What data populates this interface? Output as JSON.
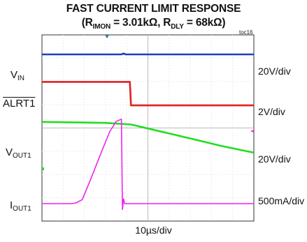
{
  "chart_data": {
    "type": "line",
    "title": "FAST CURRENT LIMIT RESPONSE",
    "subtitle": {
      "open": "(R",
      "rimon_sub": "IMON",
      "rimon_val": " = 3.01kΩ, R",
      "rdly_sub": "DLY",
      "rdly_val": " = 68kΩ)"
    },
    "tag": "toc16",
    "xlabel": "10µs/div",
    "grid": true,
    "divisions": {
      "x": 10,
      "y": 8
    },
    "channel_labels": [
      {
        "main": "V",
        "sub": "IN"
      },
      {
        "main": "ALRT1",
        "sub": ""
      },
      {
        "main": "V",
        "sub": "OUT1"
      },
      {
        "main": "I",
        "sub": "OUT1"
      }
    ],
    "scales": [
      "20V/div",
      "2V/div",
      "20V/div",
      "500mA/div"
    ],
    "series": [
      {
        "color": "#1f3fbf",
        "points": [
          [
            0,
            7.16
          ],
          [
            3.75,
            7.16
          ],
          [
            3.85,
            7.2
          ],
          [
            3.95,
            7.16
          ],
          [
            10,
            7.16
          ]
        ]
      },
      {
        "color": "#e02020",
        "points": [
          [
            0,
            5.98
          ],
          [
            4.15,
            5.98
          ],
          [
            4.2,
            4.97
          ],
          [
            10,
            4.97
          ]
        ]
      },
      {
        "color": "#22dd22",
        "points": [
          [
            0,
            4.26
          ],
          [
            3.0,
            4.22
          ],
          [
            4.2,
            4.15
          ],
          [
            5.5,
            3.87
          ],
          [
            7.0,
            3.55
          ],
          [
            8.5,
            3.22
          ],
          [
            10,
            2.94
          ]
        ]
      },
      {
        "color": "#ee22ee",
        "points": [
          [
            0,
            0.75
          ],
          [
            1.4,
            0.75
          ],
          [
            1.6,
            0.78
          ],
          [
            1.9,
            0.92
          ],
          [
            2.3,
            1.8
          ],
          [
            2.8,
            2.95
          ],
          [
            3.2,
            3.85
          ],
          [
            3.5,
            4.28
          ],
          [
            3.75,
            4.38
          ],
          [
            3.8,
            0.5
          ],
          [
            3.85,
            0.95
          ],
          [
            3.9,
            0.75
          ],
          [
            10,
            0.75
          ]
        ]
      }
    ]
  }
}
